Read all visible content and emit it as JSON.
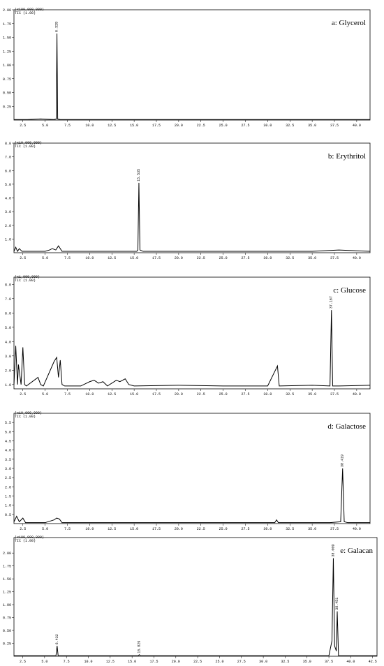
{
  "chart_data": [
    {
      "type": "line",
      "title": "a: Glycerol",
      "y_unit": "(x100,000,000)",
      "trace": "TIC (1.00)",
      "xlim": [
        1.5,
        41.5
      ],
      "ylim": [
        0,
        2.0
      ],
      "xticks": [
        2.5,
        {
          "value": 5,
          "label": "5.0"
        },
        7.5,
        {
          "value": 10,
          "label": "10.0"
        },
        12.5,
        {
          "value": 15,
          "label": "15.0"
        },
        17.5,
        {
          "value": 20,
          "label": "20.0"
        },
        22.5,
        {
          "value": 25,
          "label": "25.0"
        },
        27.5,
        {
          "value": 30,
          "label": "30.0"
        },
        32.5,
        {
          "value": 35,
          "label": "35.0"
        },
        37.5,
        {
          "value": 40,
          "label": "40.0"
        }
      ],
      "yticks": [
        0.25,
        {
          "value": 0.5,
          "label": "0.50"
        },
        0.75,
        {
          "value": 1,
          "label": "1.00"
        },
        1.25,
        {
          "value": 1.5,
          "label": "1.50"
        },
        1.75,
        {
          "value": 2,
          "label": "2.00"
        }
      ],
      "x": [
        1.5,
        3,
        4.5,
        6.0,
        6.25,
        6.329,
        6.41,
        6.7,
        10,
        20,
        30,
        41.5
      ],
      "values": [
        0.01,
        0.01,
        0.02,
        0.01,
        0.02,
        1.57,
        0.02,
        0.01,
        0.01,
        0.01,
        0.01,
        0.01
      ],
      "color": "#000000",
      "peak_labels": [
        6.329
      ]
    },
    {
      "type": "line",
      "title": "b: Erythritol",
      "y_unit": "(x10,000,000)",
      "trace": "TIC (1.00)",
      "xlim": [
        1.5,
        41.5
      ],
      "ylim": [
        0,
        8
      ],
      "xticks": [
        2.5,
        {
          "value": 5,
          "label": "5.0"
        },
        7.5,
        {
          "value": 10,
          "label": "10.0"
        },
        12.5,
        {
          "value": 15,
          "label": "15.0"
        },
        17.5,
        {
          "value": 20,
          "label": "20.0"
        },
        22.5,
        {
          "value": 25,
          "label": "25.0"
        },
        27.5,
        {
          "value": 30,
          "label": "30.0"
        },
        32.5,
        {
          "value": 35,
          "label": "35.0"
        },
        37.5,
        {
          "value": 40,
          "label": "40.0"
        }
      ],
      "yticks": [
        {
          "value": 1,
          "label": "1.0"
        },
        {
          "value": 2,
          "label": "2.0"
        },
        {
          "value": 3,
          "label": "3.0"
        },
        {
          "value": 4,
          "label": "4.0"
        },
        {
          "value": 5,
          "label": "5.0"
        },
        {
          "value": 6,
          "label": "6.0"
        },
        {
          "value": 7,
          "label": "7.0"
        },
        {
          "value": 8,
          "label": "8.0"
        }
      ],
      "x": [
        1.5,
        1.7,
        1.9,
        2.1,
        2.4,
        3,
        5,
        5.5,
        5.8,
        6.2,
        6.5,
        6.9,
        10,
        15.3,
        15.42,
        15.535,
        15.65,
        16,
        25,
        35,
        38,
        41.5
      ],
      "values": [
        0.1,
        0.4,
        0.1,
        0.3,
        0.1,
        0.1,
        0.1,
        0.2,
        0.3,
        0.2,
        0.5,
        0.1,
        0.1,
        0.1,
        0.2,
        5.1,
        0.2,
        0.1,
        0.1,
        0.1,
        0.2,
        0.1
      ],
      "color": "#000000",
      "peak_labels": [
        15.535
      ]
    },
    {
      "type": "line",
      "title": "c: Glucose",
      "y_unit": "(x1,000,000)",
      "trace": "TIC (1.00)",
      "xlim": [
        1.5,
        41.5
      ],
      "ylim": [
        0.7,
        8.5
      ],
      "xticks": [
        2.5,
        {
          "value": 5,
          "label": "5.0"
        },
        7.5,
        {
          "value": 10,
          "label": "10.0"
        },
        12.5,
        {
          "value": 15,
          "label": "15.0"
        },
        17.5,
        {
          "value": 20,
          "label": "20.0"
        },
        22.5,
        {
          "value": 25,
          "label": "25.0"
        },
        27.5,
        {
          "value": 30,
          "label": "30.0"
        },
        32.5,
        {
          "value": 35,
          "label": "35.0"
        },
        37.5,
        {
          "value": 40,
          "label": "40.0"
        }
      ],
      "yticks": [
        {
          "value": 1,
          "label": "1.0"
        },
        {
          "value": 2,
          "label": "2.0"
        },
        {
          "value": 3,
          "label": "3.0"
        },
        {
          "value": 4,
          "label": "4.0"
        },
        {
          "value": 5,
          "label": "5.0"
        },
        {
          "value": 6,
          "label": "6.0"
        },
        {
          "value": 7,
          "label": "7.0"
        },
        {
          "value": 8,
          "label": "8.0"
        }
      ],
      "x": [
        1.5,
        1.7,
        1.9,
        2.0,
        2.3,
        2.5,
        2.7,
        2.9,
        4.2,
        4.5,
        4.8,
        6.0,
        6.3,
        6.5,
        6.7,
        6.9,
        7.2,
        9,
        10,
        10.5,
        11,
        11.5,
        12,
        13,
        13.4,
        14,
        14.4,
        15,
        20,
        25,
        30,
        31.1,
        31.3,
        35,
        37.0,
        37.167,
        37.3,
        38,
        41.5
      ],
      "values": [
        1.0,
        3.7,
        1.0,
        2.4,
        1.0,
        3.6,
        1.0,
        0.9,
        1.5,
        1.0,
        0.9,
        2.6,
        2.9,
        1.5,
        2.7,
        1.0,
        0.9,
        0.9,
        1.2,
        1.3,
        1.1,
        1.2,
        0.9,
        1.3,
        1.2,
        1.4,
        1.0,
        0.9,
        0.95,
        0.9,
        0.9,
        2.3,
        0.9,
        0.95,
        0.9,
        6.2,
        0.9,
        0.9,
        0.95
      ],
      "color": "#000000",
      "peak_labels": [
        37.167
      ]
    },
    {
      "type": "line",
      "title": "d: Galactose",
      "y_unit": "(x10,000,000)",
      "trace": "TIC (1.00)",
      "xlim": [
        1.5,
        41.5
      ],
      "ylim": [
        0,
        6
      ],
      "xticks": [
        2.5,
        {
          "value": 5,
          "label": "5.0"
        },
        7.5,
        {
          "value": 10,
          "label": "10.0"
        },
        12.5,
        {
          "value": 15,
          "label": "15.0"
        },
        17.5,
        {
          "value": 20,
          "label": "20.0"
        },
        22.5,
        {
          "value": 25,
          "label": "25.0"
        },
        27.5,
        {
          "value": 30,
          "label": "30.0"
        },
        32.5,
        {
          "value": 35,
          "label": "35.0"
        },
        37.5,
        {
          "value": 40,
          "label": "40.0"
        }
      ],
      "yticks": [
        0.5,
        {
          "value": 1,
          "label": "1.0"
        },
        1.5,
        {
          "value": 2,
          "label": "2.0"
        },
        2.5,
        {
          "value": 3,
          "label": "3.0"
        },
        3.5,
        {
          "value": 4,
          "label": "4.0"
        },
        4.5,
        {
          "value": 5,
          "label": "5.0"
        },
        5.5
      ],
      "x": [
        1.5,
        1.8,
        2.1,
        2.5,
        2.8,
        5,
        6,
        6.3,
        6.6,
        6.9,
        10,
        20,
        30.8,
        31.0,
        31.2,
        37,
        38.2,
        38.419,
        38.6,
        39,
        41.5
      ],
      "values": [
        0.1,
        0.4,
        0.1,
        0.3,
        0.05,
        0.05,
        0.2,
        0.3,
        0.25,
        0.05,
        0.05,
        0.05,
        0.05,
        0.2,
        0.05,
        0.05,
        0.1,
        3.0,
        0.1,
        0.05,
        0.05
      ],
      "color": "#000000",
      "peak_labels": [
        38.419
      ]
    },
    {
      "type": "line",
      "title": "e: Galacan",
      "y_unit": "(x100,000,000)",
      "trace": "TIC (1.00)",
      "xlim": [
        1.5,
        43
      ],
      "ylim": [
        0,
        2.3
      ],
      "xticks": [
        2.5,
        {
          "value": 5,
          "label": "5.0"
        },
        7.5,
        {
          "value": 10,
          "label": "10.0"
        },
        12.5,
        {
          "value": 15,
          "label": "15.0"
        },
        17.5,
        {
          "value": 20,
          "label": "20.0"
        },
        22.5,
        {
          "value": 25,
          "label": "25.0"
        },
        27.5,
        {
          "value": 30,
          "label": "30.0"
        },
        32.5,
        {
          "value": 35,
          "label": "35.0"
        },
        37.5,
        {
          "value": 40,
          "label": "40.0"
        },
        42.5
      ],
      "yticks": [
        0.25,
        {
          "value": 0.5,
          "label": "0.50"
        },
        0.75,
        {
          "value": 1,
          "label": "1.00"
        },
        1.25,
        {
          "value": 1.5,
          "label": "1.50"
        },
        1.75,
        {
          "value": 2,
          "label": "2.00"
        }
      ],
      "x": [
        1.5,
        5,
        6.3,
        6.432,
        6.55,
        10,
        15.7,
        15.829,
        15.95,
        20,
        30,
        37.5,
        37.85,
        38.009,
        38.15,
        38.35,
        38.451,
        38.6,
        41,
        43
      ],
      "values": [
        0.01,
        0.01,
        0.01,
        0.2,
        0.01,
        0.01,
        0.01,
        0.03,
        0.01,
        0.01,
        0.01,
        0.01,
        0.3,
        1.9,
        0.2,
        0.1,
        0.87,
        0.01,
        0.01,
        0.01
      ],
      "color": "#000000",
      "peak_labels": [
        6.432,
        15.829,
        38.009,
        38.451
      ]
    }
  ]
}
